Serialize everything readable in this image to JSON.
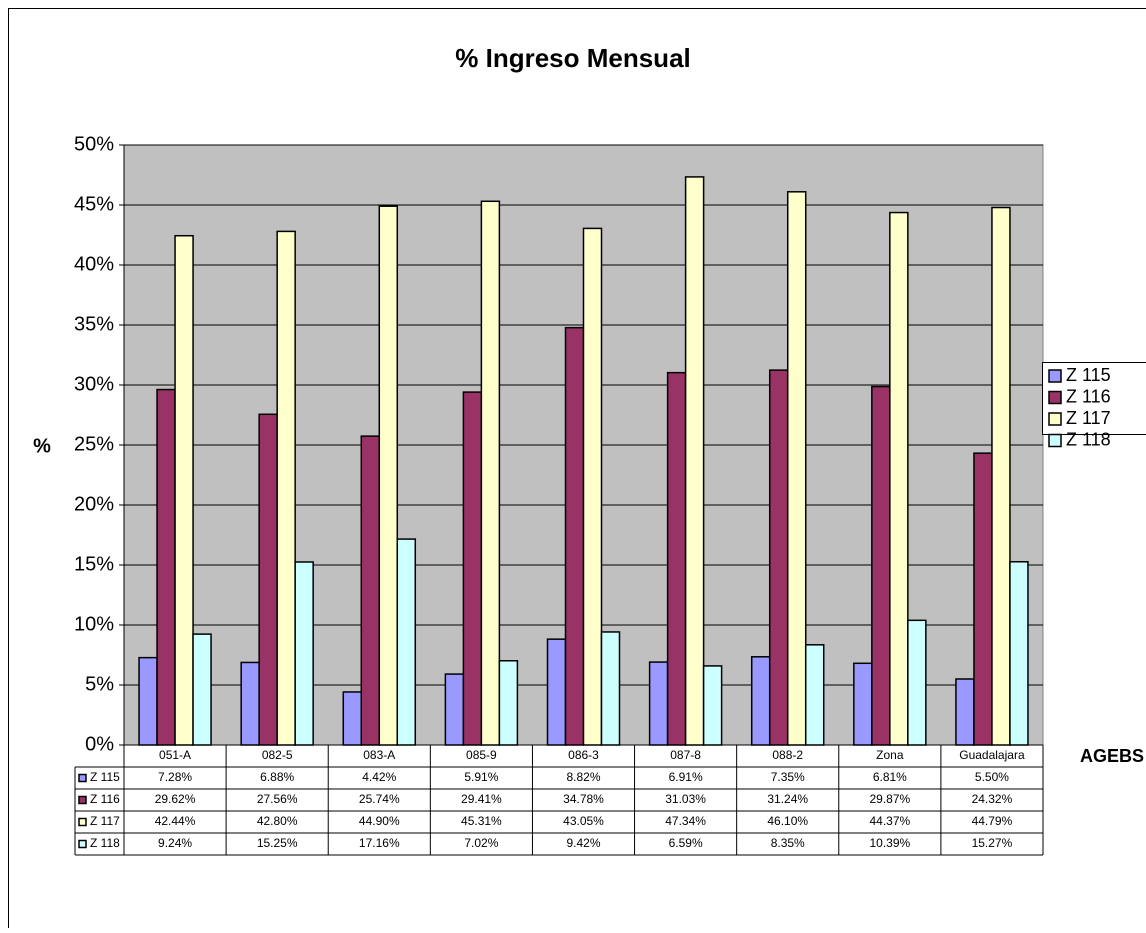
{
  "chart_data": {
    "type": "bar",
    "title": "% Ingreso Mensual",
    "y_label": "%",
    "x_label": "AGEBS",
    "categories": [
      "051-A",
      "082-5",
      "083-A",
      "085-9",
      "086-3",
      "087-8",
      "088-2",
      "Zona",
      "Guadalajara"
    ],
    "series": [
      {
        "name": "Z 115",
        "color": "#9999ff",
        "values": [
          7.28,
          6.88,
          4.42,
          5.91,
          8.82,
          6.91,
          7.35,
          6.81,
          5.5
        ],
        "value_labels": [
          "7.28%",
          "6.88%",
          "4.42%",
          "5.91%",
          "8.82%",
          "6.91%",
          "7.35%",
          "6.81%",
          "5.50%"
        ]
      },
      {
        "name": "Z 116",
        "color": "#993366",
        "values": [
          29.62,
          27.56,
          25.74,
          29.41,
          34.78,
          31.03,
          31.24,
          29.87,
          24.32
        ],
        "value_labels": [
          "29.62%",
          "27.56%",
          "25.74%",
          "29.41%",
          "34.78%",
          "31.03%",
          "31.24%",
          "29.87%",
          "24.32%"
        ]
      },
      {
        "name": "Z 117",
        "color": "#ffffcc",
        "values": [
          42.44,
          42.8,
          44.9,
          45.31,
          43.05,
          47.34,
          46.1,
          44.37,
          44.79
        ],
        "value_labels": [
          "42.44%",
          "42.80%",
          "44.90%",
          "45.31%",
          "43.05%",
          "47.34%",
          "46.10%",
          "44.37%",
          "44.79%"
        ]
      },
      {
        "name": "Z 118",
        "color": "#ccffff",
        "values": [
          9.24,
          15.25,
          17.16,
          7.02,
          9.42,
          6.59,
          8.35,
          10.39,
          15.27
        ],
        "value_labels": [
          "9.24%",
          "15.25%",
          "17.16%",
          "7.02%",
          "9.42%",
          "6.59%",
          "8.35%",
          "10.39%",
          "15.27%"
        ]
      }
    ],
    "ylim": [
      0,
      50
    ],
    "yticks": [
      {
        "value": 0,
        "label": "0%"
      },
      {
        "value": 5,
        "label": "5%"
      },
      {
        "value": 10,
        "label": "10%"
      },
      {
        "value": 15,
        "label": "15%"
      },
      {
        "value": 20,
        "label": "20%"
      },
      {
        "value": 25,
        "label": "25%"
      },
      {
        "value": 30,
        "label": "30%"
      },
      {
        "value": 35,
        "label": "35%"
      },
      {
        "value": 40,
        "label": "40%"
      },
      {
        "value": 45,
        "label": "45%"
      },
      {
        "value": 50,
        "label": "50%"
      }
    ],
    "grid": true,
    "legend": "right"
  }
}
